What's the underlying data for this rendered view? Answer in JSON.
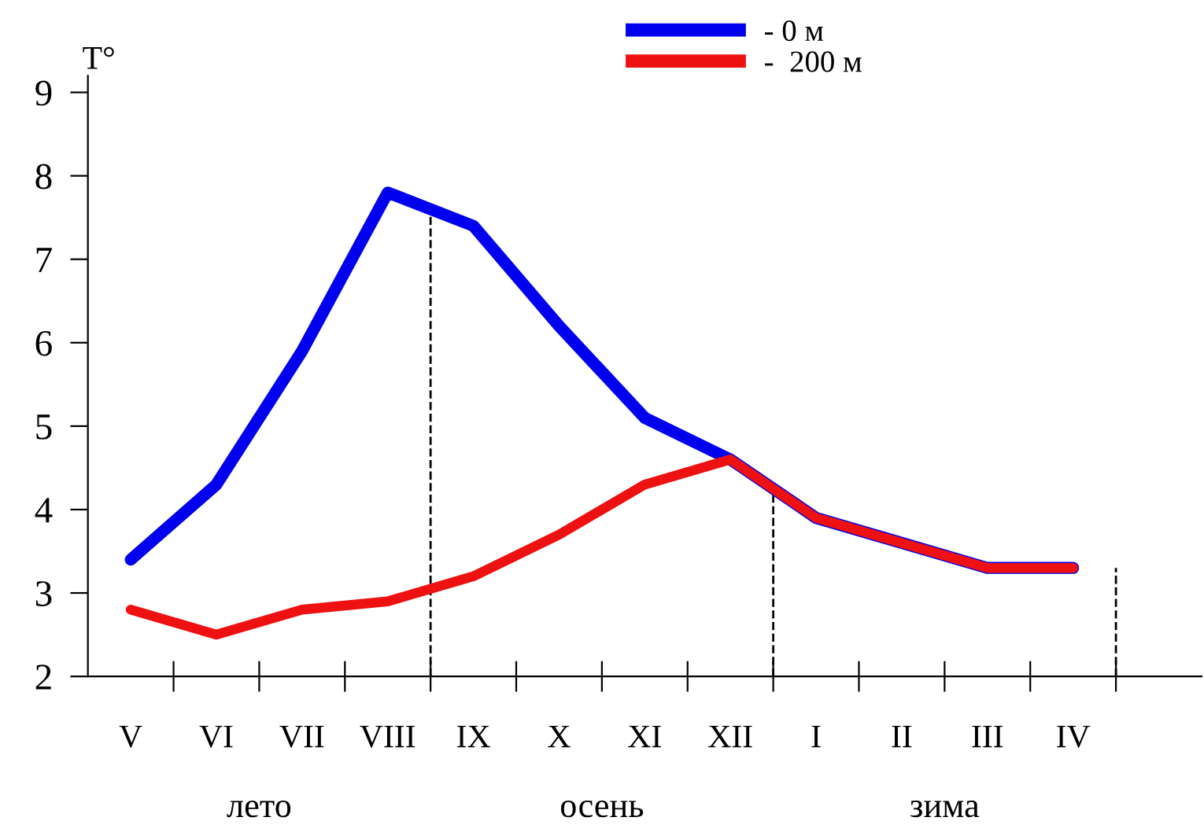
{
  "chart_data": {
    "type": "line",
    "ylabel": "T°",
    "categories": [
      "V",
      "VI",
      "VII",
      "VIII",
      "IX",
      "X",
      "XI",
      "XII",
      "I",
      "II",
      "III",
      "IV",
      null
    ],
    "ylim": [
      2,
      9.2
    ],
    "yticks": [
      2,
      3,
      4,
      5,
      6,
      7,
      8,
      9
    ],
    "series": [
      {
        "name": "- 0 м",
        "color": "#0000ee",
        "values": [
          3.4,
          4.3,
          5.9,
          7.8,
          7.4,
          6.2,
          5.1,
          4.6,
          3.9,
          3.6,
          3.3,
          3.3,
          null
        ]
      },
      {
        "name": "-  200 м",
        "color": "#ee1111",
        "values": [
          2.8,
          2.5,
          2.8,
          2.9,
          3.2,
          3.7,
          4.3,
          4.6,
          3.9,
          3.6,
          3.3,
          3.3,
          null
        ]
      }
    ],
    "annotations": [
      "лето",
      "осень",
      "зима"
    ],
    "legend": "top right",
    "grid": false,
    "marker": "none",
    "line_style": "solid"
  }
}
